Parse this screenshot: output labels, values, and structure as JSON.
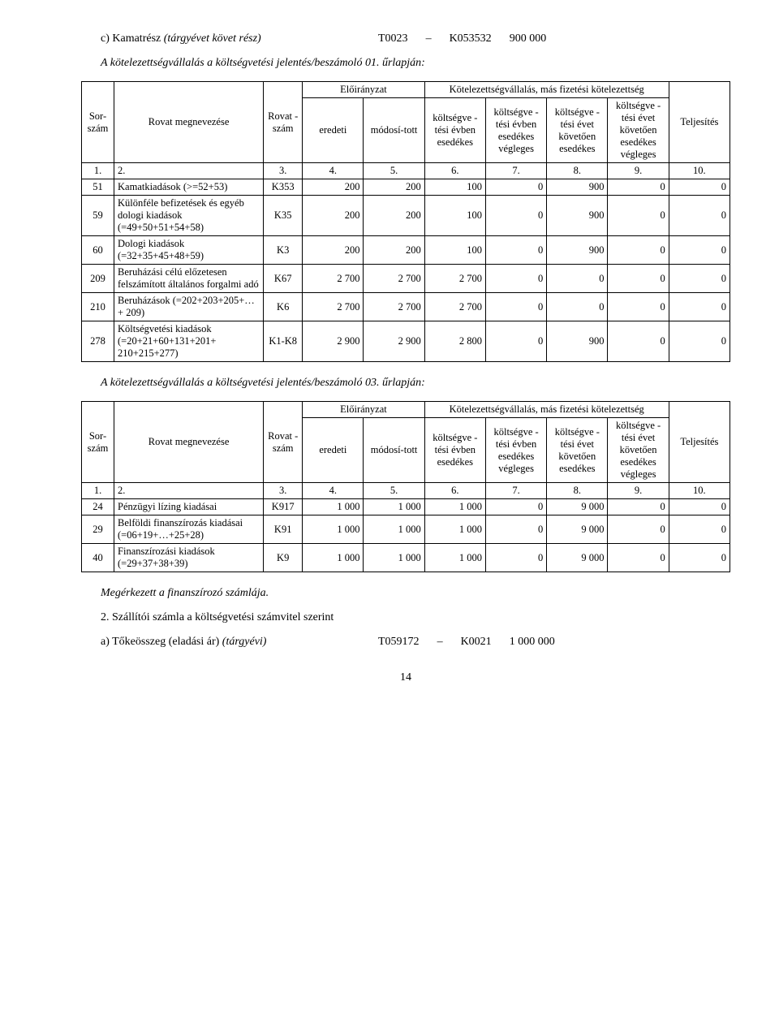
{
  "section_c": {
    "label_prefix": "c) Kamatrész ",
    "label_italic": "(tárgyévet követ rész)",
    "code1": "T0023",
    "dash": "–",
    "code2": "K053532",
    "amount": "900 000"
  },
  "line1_italic": "A kötelezettségvállalás a költségvetési jelentés/beszámoló 01. űrlapján:",
  "th": {
    "sor": "Sor-szám",
    "rovat_megnev": "Rovat megnevezése",
    "rovat_szam": "Rovat -szám",
    "eloir": "Előirányzat",
    "eredeti": "eredeti",
    "modos": "módosí-tott",
    "kotval": "Kötelezettségvállalás, más fizetési kötelezettség",
    "c1": "költségve -tési évben esedékes",
    "c2": "költségve -tési évben esedékes végleges",
    "c3": "költségve -tési évet követően esedékes",
    "c4": "költségve -tési évet követően esedékes végleges",
    "telj": "Teljesítés"
  },
  "numrow": [
    "1.",
    "2.",
    "3.",
    "4.",
    "5.",
    "6.",
    "7.",
    "8.",
    "9.",
    "10."
  ],
  "t1": {
    "rows": [
      {
        "sor": "51",
        "name": "Kamatkiadások (>=52+53)",
        "rsz": "K353",
        "v": [
          "200",
          "200",
          "100",
          "0",
          "900",
          "0",
          "0"
        ]
      },
      {
        "sor": "59",
        "name": "Különféle befizetések és egyéb dologi kiadások (=49+50+51+54+58)",
        "rsz": "K35",
        "v": [
          "200",
          "200",
          "100",
          "0",
          "900",
          "0",
          "0"
        ]
      },
      {
        "sor": "60",
        "name": "Dologi kiadások (=32+35+45+48+59)",
        "rsz": "K3",
        "v": [
          "200",
          "200",
          "100",
          "0",
          "900",
          "0",
          "0"
        ]
      },
      {
        "sor": "209",
        "name": "Beruházási célú előzetesen felszámított általános forgalmi adó",
        "rsz": "K67",
        "v": [
          "2 700",
          "2 700",
          "2 700",
          "0",
          "0",
          "0",
          "0"
        ]
      },
      {
        "sor": "210",
        "name": "Beruházások (=202+203+205+…+ 209)",
        "rsz": "K6",
        "v": [
          "2 700",
          "2 700",
          "2 700",
          "0",
          "0",
          "0",
          "0"
        ]
      },
      {
        "sor": "278",
        "name": "Költségvetési kiadások (=20+21+60+131+201+ 210+215+277)",
        "rsz": "K1-K8",
        "v": [
          "2 900",
          "2 900",
          "2 800",
          "0",
          "900",
          "0",
          "0"
        ]
      }
    ]
  },
  "line2_italic": "A kötelezettségvállalás a költségvetési jelentés/beszámoló 03. űrlapján:",
  "t2": {
    "rows": [
      {
        "sor": "24",
        "name": "Pénzügyi lízing kiadásai",
        "rsz": "K917",
        "v": [
          "1 000",
          "1 000",
          "1 000",
          "0",
          "9 000",
          "0",
          "0"
        ]
      },
      {
        "sor": "29",
        "name": "Belföldi finanszírozás kiadásai (=06+19+…+25+28)",
        "rsz": "K91",
        "v": [
          "1 000",
          "1 000",
          "1 000",
          "0",
          "9 000",
          "0",
          "0"
        ]
      },
      {
        "sor": "40",
        "name": "Finanszírozási kiadások (=29+37+38+39)",
        "rsz": "K9",
        "v": [
          "1 000",
          "1 000",
          "1 000",
          "0",
          "9 000",
          "0",
          "0"
        ]
      }
    ]
  },
  "arrived_italic": "Megérkezett a finanszírozó számlája.",
  "line3": "2. Szállítói számla a költségvetési számvitel szerint",
  "section_a": {
    "label_prefix": "a) Tőkeösszeg (eladási ár) ",
    "label_italic": "(tárgyévi)",
    "code1": "T059172",
    "dash": "–",
    "code2": "K0021",
    "amount": "1 000 000"
  },
  "page_num": "14"
}
